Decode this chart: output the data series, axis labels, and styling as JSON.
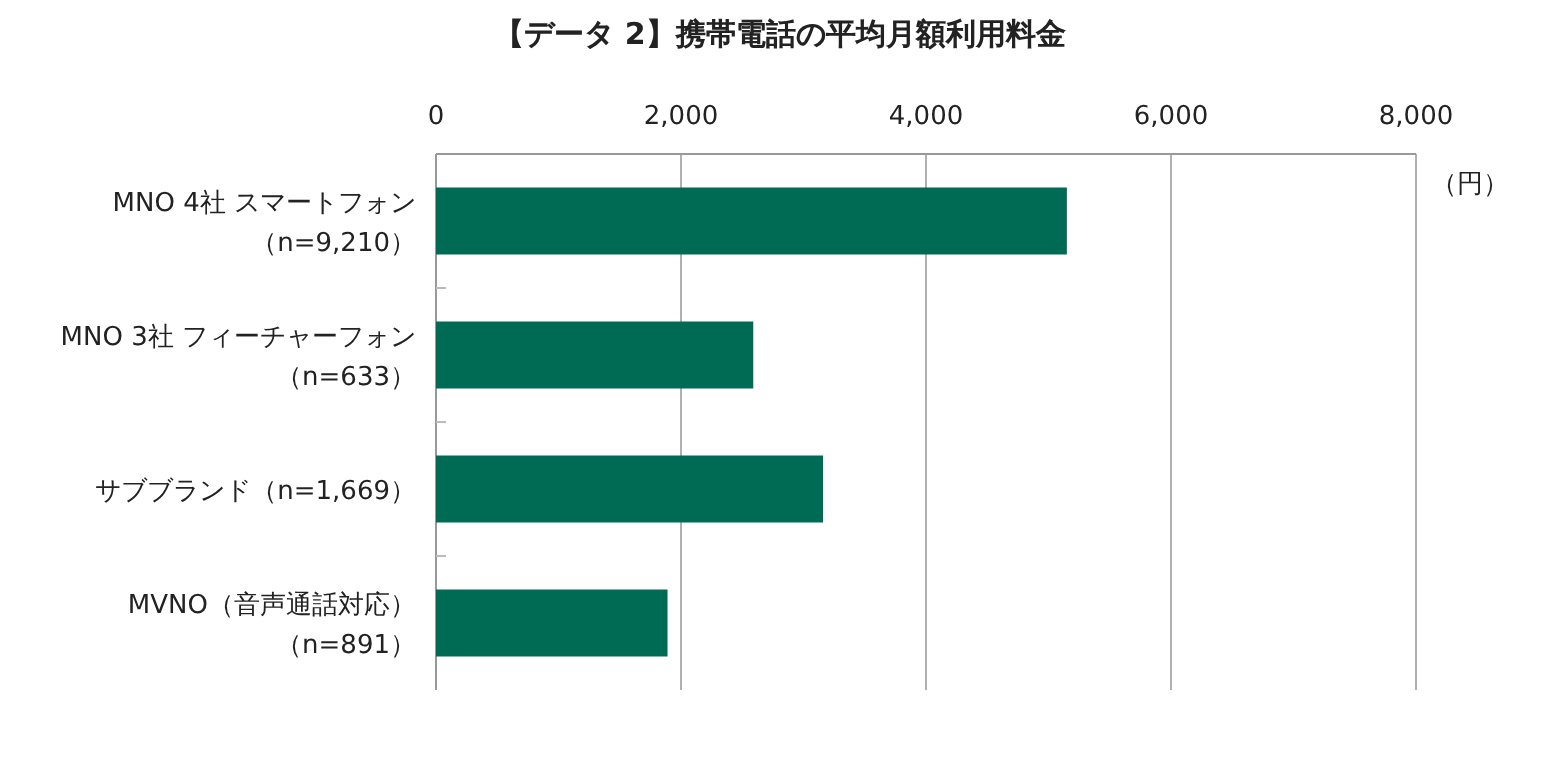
{
  "chart_data": {
    "type": "bar",
    "orientation": "horizontal",
    "title": "【データ 2】携帯電話の平均月額利用料金",
    "xlabel": "（円）",
    "categories": [
      "MNO 4社 スマートフォン（n=9,210）",
      "MNO 3社 フィーチャーフォン（n=633）",
      "サブブランド（n=1,669）",
      "MVNO（音声通話対応）（n=891）"
    ],
    "values": [
      5150,
      2590,
      3160,
      1890
    ],
    "color": "#006b54",
    "xlim": [
      0,
      8000
    ],
    "xticks": [
      0,
      {
        "value": 2000,
        "label": "2,000"
      },
      {
        "value": 4000,
        "label": "4,000"
      },
      {
        "value": 6000,
        "label": "6,000"
      },
      {
        "value": 8000,
        "label": "8,000"
      }
    ],
    "grid": "x"
  }
}
